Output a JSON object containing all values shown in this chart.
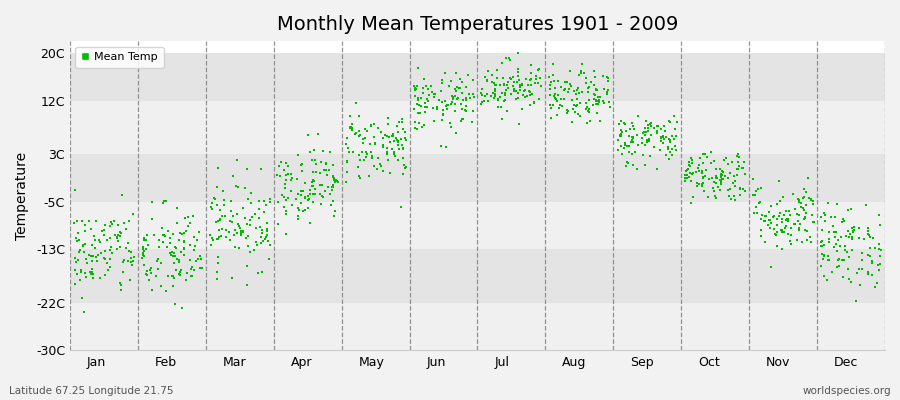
{
  "title": "Monthly Mean Temperatures 1901 - 2009",
  "ylabel": "Temperature",
  "bottom_left_text": "Latitude 67.25 Longitude 21.75",
  "bottom_right_text": "worldspecies.org",
  "legend_label": "Mean Temp",
  "dot_color": "#00bb00",
  "background_color": "#f2f2f2",
  "plot_bg_color": "#ffffff",
  "band_colors": [
    "#f0f0f0",
    "#e4e4e4"
  ],
  "yticks": [
    -30,
    -22,
    -13,
    -5,
    3,
    12,
    20
  ],
  "ytick_labels": [
    "-30C",
    "-22C",
    "-13C",
    "-5C",
    "3C",
    "12C",
    "20C"
  ],
  "ylim": [
    -30,
    22
  ],
  "months": [
    "Jan",
    "Feb",
    "Mar",
    "Apr",
    "May",
    "Jun",
    "Jul",
    "Aug",
    "Sep",
    "Oct",
    "Nov",
    "Dec"
  ],
  "month_mean_temps": [
    -13.5,
    -14.0,
    -8.5,
    -2.0,
    4.5,
    11.5,
    14.5,
    12.5,
    5.5,
    -0.5,
    -7.5,
    -12.5
  ],
  "month_std_temps": [
    3.8,
    4.2,
    3.8,
    3.2,
    3.0,
    2.5,
    2.2,
    2.2,
    2.2,
    2.2,
    3.0,
    3.5
  ],
  "n_years": 109,
  "seed": 42,
  "marker": "s",
  "marker_size": 3
}
